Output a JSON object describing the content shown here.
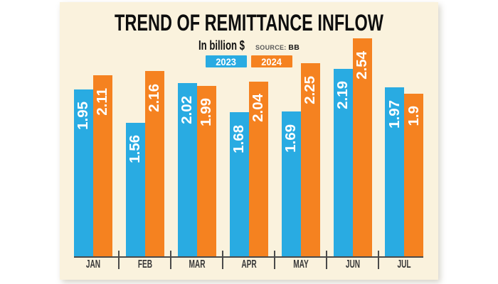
{
  "chart_data": {
    "type": "bar",
    "title": "TREND OF REMITTANCE INFLOW",
    "subtitle": "In billion $",
    "source_label": "SOURCE:",
    "source_value": "BB",
    "categories": [
      "JAN",
      "FEB",
      "MAR",
      "APR",
      "MAY",
      "JUN",
      "JUL"
    ],
    "series": [
      {
        "name": "2023",
        "color": "#29abe2",
        "values": [
          1.95,
          1.56,
          2.02,
          1.68,
          1.69,
          2.19,
          1.97
        ]
      },
      {
        "name": "2024",
        "color": "#f58220",
        "values": [
          2.11,
          2.16,
          1.99,
          2.04,
          2.25,
          2.54,
          1.9
        ]
      }
    ],
    "xlabel": "",
    "ylabel": "",
    "legend_position": "top-center",
    "grid": false,
    "value_label_rotation": -90
  },
  "colors": {
    "series_2023": "#29abe2",
    "series_2024": "#f58220",
    "panel_background": "#faf2dd",
    "page_background": "#ffffff",
    "axis": "#4a4a4a",
    "title_text": "#0d0d0d",
    "bar_value_text": "#ffffff"
  }
}
